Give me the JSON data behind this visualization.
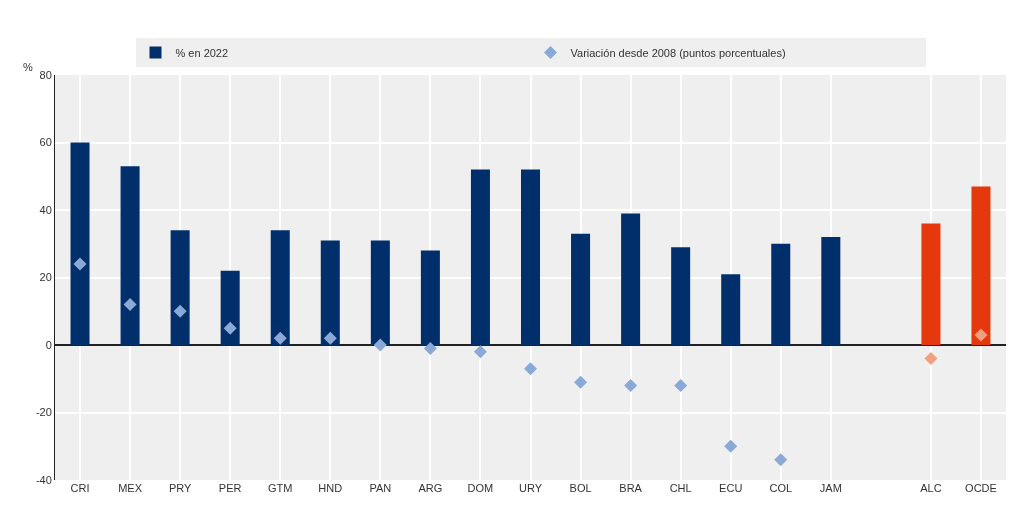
{
  "chart_data": {
    "type": "bar",
    "ylabel": "%",
    "categories": [
      "CRI",
      "MEX",
      "PRY",
      "PER",
      "GTM",
      "HND",
      "PAN",
      "ARG",
      "DOM",
      "URY",
      "BOL",
      "BRA",
      "CHL",
      "ECU",
      "COL",
      "JAM",
      null,
      "ALC",
      "OCDE"
    ],
    "series": [
      {
        "name": "% en 2022",
        "colors": [
          "#002f6c",
          "#002f6c",
          "#002f6c",
          "#002f6c",
          "#002f6c",
          "#002f6c",
          "#002f6c",
          "#002f6c",
          "#002f6c",
          "#002f6c",
          "#002f6c",
          "#002f6c",
          "#002f6c",
          "#002f6c",
          "#002f6c",
          "#002f6c",
          "#002f6c",
          "#e5390d",
          "#e5390d"
        ],
        "values": [
          60,
          53,
          34,
          22,
          34,
          31,
          31,
          28,
          52,
          52,
          33,
          39,
          29,
          21,
          30,
          32,
          null,
          36,
          47
        ]
      },
      {
        "name": "Variación desde 2008 (puntos porcentuales)",
        "type": "scatter",
        "marker": "diamond",
        "colors": [
          "#8aa9d6",
          "#8aa9d6",
          "#8aa9d6",
          "#8aa9d6",
          "#8aa9d6",
          "#8aa9d6",
          "#8aa9d6",
          "#8aa9d6",
          "#8aa9d6",
          "#8aa9d6",
          "#8aa9d6",
          "#8aa9d6",
          "#8aa9d6",
          "#8aa9d6",
          "#8aa9d6",
          "#8aa9d6",
          "#8aa9d6",
          "#f0a07f",
          "#f0a07f"
        ],
        "values": [
          24,
          12,
          10,
          5,
          2,
          2,
          0,
          -1,
          -2,
          -7,
          -11,
          -12,
          -12,
          -30,
          -34,
          null,
          null,
          -4,
          3
        ]
      }
    ],
    "ylim": [
      -40,
      80
    ],
    "yticks": [
      -40,
      -20,
      0,
      20,
      40,
      60,
      80
    ],
    "grid": true,
    "legend": "top"
  }
}
